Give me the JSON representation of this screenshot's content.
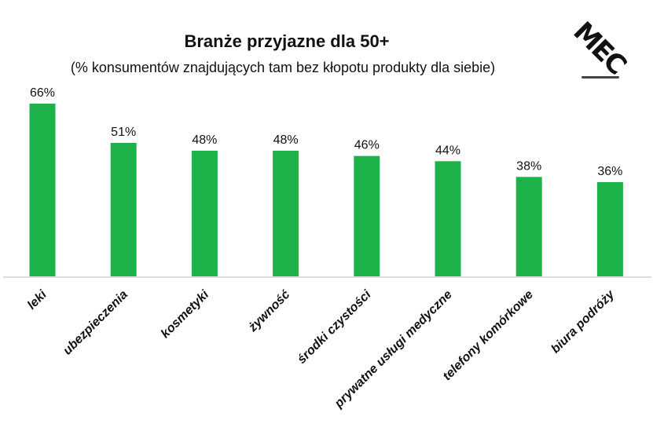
{
  "logo": "MEC",
  "chart_data": {
    "type": "bar",
    "title": "Branże przyjazne dla 50+",
    "subtitle": "(% konsumentów znajdujących tam bez kłopotu produkty dla siebie)",
    "categories": [
      "leki",
      "ubezpieczenia",
      "kosmetyki",
      "żywność",
      "środki czystości",
      "prywatne usługi medyczne",
      "telefony komórkowe",
      "biura podróży"
    ],
    "values": [
      66,
      51,
      48,
      48,
      46,
      44,
      38,
      36
    ],
    "value_labels": [
      "66%",
      "51%",
      "48%",
      "48%",
      "46%",
      "44%",
      "38%",
      "36%"
    ],
    "xlabel": "",
    "ylabel": "",
    "ylim": [
      0,
      66
    ],
    "grid": false,
    "bar_color": "#1db34a"
  }
}
